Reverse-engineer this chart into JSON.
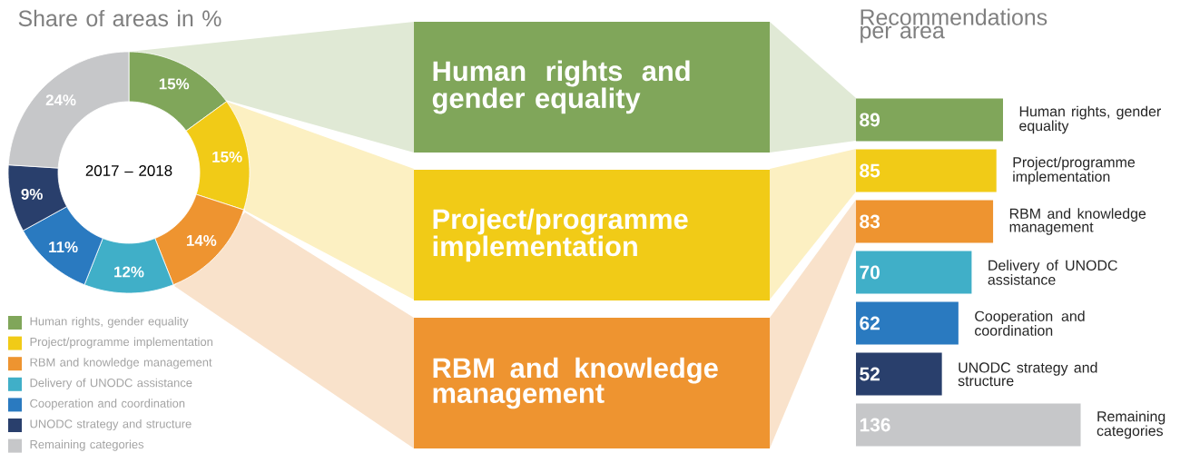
{
  "chart_data": [
    {
      "type": "donut",
      "title": "Share of areas in %",
      "categories": [
        "Human rights, gender equality",
        "Project/programme implementation",
        "RBM and knowledge management",
        "Delivery of UNODC assistance",
        "Cooperation and coordination",
        "UNODC strategy and structure",
        "Remaining categories"
      ],
      "values": [
        15,
        15,
        14,
        12,
        11,
        9,
        24
      ],
      "value_labels": [
        "15%",
        "15%",
        "14%",
        "12%",
        "11%",
        "9%",
        "24%"
      ],
      "colors": [
        "#80a65a",
        "#f1cb17",
        "#ee9430",
        "#40afc8",
        "#2a7ac0",
        "#293f6c",
        "#c6c7c9"
      ],
      "legend": "bottom",
      "annotations": [
        "2017 – 2018"
      ]
    },
    {
      "type": "other",
      "annotations": [
        "Human rights and gender equality",
        "Project/programme implementation",
        "RBM and knowledge management"
      ],
      "colors": [
        "#80a65a",
        "#f1cb17",
        "#ee9430"
      ]
    },
    {
      "type": "bar",
      "orientation": "horizontal",
      "title": "Recommendations per area",
      "categories": [
        "Human rights, gender equality",
        "Project/programme implementation",
        "RBM and knowledge management",
        "Delivery of UNODC assistance",
        "Cooperation and coordination",
        "UNODC strategy and structure",
        "Remaining categories"
      ],
      "values": [
        89,
        85,
        83,
        70,
        62,
        52,
        136
      ],
      "colors": [
        "#80a65a",
        "#f1cb17",
        "#ee9430",
        "#40afc8",
        "#2a7ac0",
        "#293f6c",
        "#c6c7c9"
      ],
      "data_labels": true
    }
  ]
}
